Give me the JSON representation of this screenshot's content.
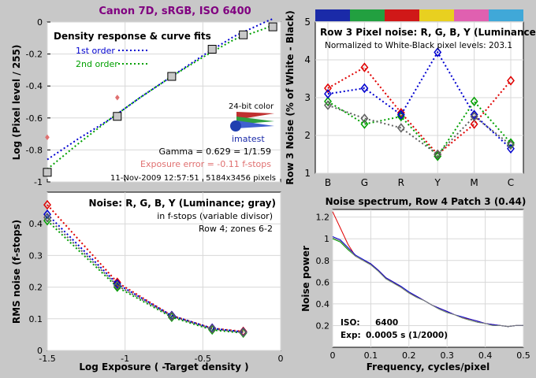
{
  "figure_title": "Canon 7D, sRGB, ISO 6400",
  "colors": {
    "background": "#c8c8c8",
    "title": "#800080",
    "red": "#e00000",
    "green": "#00a000",
    "blue": "#0000d0",
    "yellow_strip": "#e8d020",
    "magenta_strip": "#e060b0",
    "cyan_strip": "#40a8d8"
  },
  "chart_data": [
    {
      "id": "density",
      "type": "line",
      "title": "Density response & curve fits",
      "legend": [
        {
          "name": "1st order",
          "color": "#0000d0"
        },
        {
          "name": "2nd order",
          "color": "#00a000"
        }
      ],
      "xlim": [
        -1.5,
        0
      ],
      "ylim": [
        -1,
        0
      ],
      "xticks": [
        -1.5,
        -1,
        -0.5,
        0
      ],
      "xticklabels": [
        "",
        "",
        "",
        ""
      ],
      "yticks": [
        -1,
        -0.8,
        -0.6,
        -0.4,
        -0.2,
        0
      ],
      "yticklabels": [
        "-1",
        "-0.8",
        "-0.6",
        "-0.4",
        "-0.2",
        "0"
      ],
      "ylabel": "Log (Pixel level / 255)",
      "points_squares": {
        "x": [
          -1.5,
          -1.05,
          -0.7,
          -0.44,
          -0.24,
          -0.05
        ],
        "y": [
          -0.94,
          -0.59,
          -0.34,
          -0.17,
          -0.08,
          -0.03
        ]
      },
      "points_red": {
        "x": [
          -1.5,
          -1.05
        ],
        "y": [
          -0.72,
          -0.47
        ]
      },
      "fit_1st": {
        "x": [
          -1.5,
          -1.3,
          -1.1,
          -0.9,
          -0.7,
          -0.5,
          -0.3,
          -0.1,
          -0.05
        ],
        "y": [
          -0.86,
          -0.73,
          -0.61,
          -0.47,
          -0.34,
          -0.21,
          -0.09,
          0.0,
          0.02
        ]
      },
      "fit_2nd": {
        "x": [
          -1.5,
          -1.3,
          -1.1,
          -0.9,
          -0.7,
          -0.5,
          -0.3,
          -0.1,
          -0.05
        ],
        "y": [
          -0.92,
          -0.76,
          -0.61,
          -0.47,
          -0.34,
          -0.22,
          -0.11,
          -0.04,
          -0.02
        ]
      },
      "logo_caption": "24-bit color",
      "logo_name": "imatest",
      "gamma_text": "Gamma = 0.629 = 1/1.59",
      "exposure_error_text": "Exposure error = -0.11 f-stops",
      "timestamp_text": "11-Nov-2009 12:57:51",
      "pixels_text": "5184x3456 pixels"
    },
    {
      "id": "rgby_noise",
      "type": "line",
      "title": "Row 3 Pixel noise: R, G, B, Y (Luminance)",
      "subtitle": "Normalized to White-Black pixel levels: 203.1",
      "ylabel": "Row 3 Noise (% of White - Black)",
      "categories": [
        "B",
        "G",
        "R",
        "Y",
        "M",
        "C"
      ],
      "ylim": [
        1,
        5
      ],
      "yticks": [
        1,
        2,
        3,
        4,
        5
      ],
      "color_strip": [
        "#1a2aa8",
        "#22a040",
        "#d01818",
        "#e8d020",
        "#e060b0",
        "#40a8d8"
      ],
      "series": [
        {
          "name": "R",
          "color": "#e00000",
          "values": [
            3.25,
            3.8,
            2.6,
            1.5,
            2.3,
            3.45
          ]
        },
        {
          "name": "G",
          "color": "#00a000",
          "values": [
            2.9,
            2.3,
            2.5,
            1.45,
            2.9,
            1.8
          ]
        },
        {
          "name": "B",
          "color": "#0000d0",
          "values": [
            3.1,
            3.25,
            2.55,
            4.2,
            2.55,
            1.65
          ]
        },
        {
          "name": "Y",
          "color": "#606060",
          "values": [
            2.8,
            2.45,
            2.2,
            1.5,
            2.5,
            1.75
          ]
        }
      ]
    },
    {
      "id": "noise_fstops",
      "type": "line",
      "title": "Noise: R, G, B, Y (Luminance; gray)",
      "annotations": [
        "in f-stops (variable divisor)",
        "Row 4; zones 6-2"
      ],
      "xlabel": "Log Exposure ( -Target density )",
      "ylabel": "RMS noise (f-stops)",
      "xlim": [
        -1.5,
        0
      ],
      "ylim": [
        0,
        0.5
      ],
      "xticks": [
        -1.5,
        -1,
        -0.5,
        0
      ],
      "xticklabels": [
        "-1.5",
        "-1",
        "-0.5",
        "0"
      ],
      "yticks": [
        0,
        0.1,
        0.2,
        0.3,
        0.4
      ],
      "yticklabels": [
        "0",
        "0.1",
        "0.2",
        "0.3",
        "0.4"
      ],
      "x": [
        -1.5,
        -1.05,
        -0.7,
        -0.44,
        -0.24
      ],
      "series": [
        {
          "name": "R",
          "color": "#e00000",
          "values": [
            0.46,
            0.215,
            0.11,
            0.07,
            0.06
          ]
        },
        {
          "name": "G",
          "color": "#00a000",
          "values": [
            0.41,
            0.2,
            0.105,
            0.065,
            0.055
          ]
        },
        {
          "name": "B",
          "color": "#0000d0",
          "values": [
            0.43,
            0.21,
            0.11,
            0.07,
            0.058
          ]
        },
        {
          "name": "Y",
          "color": "#606060",
          "values": [
            0.42,
            0.205,
            0.108,
            0.068,
            0.057
          ]
        }
      ]
    },
    {
      "id": "spectrum",
      "type": "line",
      "title": "Noise spectrum, Row 4 Patch 3 (0.44)",
      "xlabel": "Frequency, cycles/pixel",
      "ylabel": "Noise power",
      "xlim": [
        0,
        0.5
      ],
      "ylim": [
        0,
        1.27
      ],
      "xticks": [
        0,
        0.1,
        0.2,
        0.3,
        0.4,
        0.5
      ],
      "xticklabels": [
        "0",
        "0.1",
        "0.2",
        "0.3",
        "0.4",
        "0.5"
      ],
      "yticks": [
        0.2,
        0.4,
        0.6,
        0.8,
        1.0,
        1.2
      ],
      "yticklabels": [
        "0.2",
        "0.4",
        "0.6",
        "0.8",
        "1",
        "1.2"
      ],
      "x": [
        0,
        0.02,
        0.04,
        0.06,
        0.08,
        0.1,
        0.12,
        0.14,
        0.16,
        0.18,
        0.2,
        0.22,
        0.24,
        0.26,
        0.28,
        0.3,
        0.32,
        0.34,
        0.36,
        0.38,
        0.4,
        0.42,
        0.44,
        0.46,
        0.48,
        0.5
      ],
      "series": [
        {
          "name": "R",
          "color": "#e00000",
          "values": [
            1.25,
            1.1,
            0.95,
            0.84,
            0.8,
            0.77,
            0.71,
            0.64,
            0.6,
            0.55,
            0.5,
            0.47,
            0.43,
            0.39,
            0.36,
            0.33,
            0.3,
            0.27,
            0.26,
            0.24,
            0.22,
            0.21,
            0.2,
            0.19,
            0.2,
            0.2
          ]
        },
        {
          "name": "G",
          "color": "#00a000",
          "values": [
            1.0,
            0.97,
            0.9,
            0.84,
            0.8,
            0.76,
            0.7,
            0.63,
            0.59,
            0.55,
            0.5,
            0.46,
            0.43,
            0.39,
            0.35,
            0.32,
            0.3,
            0.27,
            0.25,
            0.23,
            0.22,
            0.2,
            0.2,
            0.19,
            0.2,
            0.2
          ]
        },
        {
          "name": "B",
          "color": "#0000d0",
          "values": [
            1.02,
            0.99,
            0.92,
            0.85,
            0.81,
            0.77,
            0.71,
            0.64,
            0.6,
            0.56,
            0.51,
            0.47,
            0.43,
            0.39,
            0.36,
            0.33,
            0.3,
            0.28,
            0.26,
            0.24,
            0.22,
            0.21,
            0.2,
            0.19,
            0.2,
            0.2
          ]
        },
        {
          "name": "Y",
          "color": "#808080",
          "values": [
            1.01,
            0.98,
            0.91,
            0.84,
            0.8,
            0.76,
            0.7,
            0.63,
            0.59,
            0.55,
            0.5,
            0.46,
            0.43,
            0.39,
            0.35,
            0.32,
            0.3,
            0.27,
            0.25,
            0.23,
            0.22,
            0.2,
            0.2,
            0.19,
            0.2,
            0.2
          ]
        }
      ],
      "iso_label": "ISO:",
      "iso_value": "6400",
      "exp_label": "Exp:",
      "exp_value": "0.0005 s  (1/2000)"
    }
  ]
}
